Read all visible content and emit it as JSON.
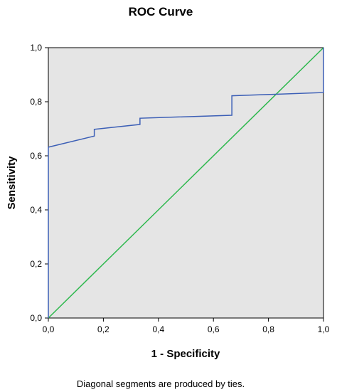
{
  "chart_data": {
    "type": "line",
    "title": "ROC Curve",
    "xlabel": "1 - Specificity",
    "ylabel": "Sensitivity",
    "xlim": [
      0,
      1
    ],
    "ylim": [
      0,
      1
    ],
    "x_ticks": [
      "0,0",
      "0,2",
      "0,4",
      "0,6",
      "0,8",
      "1,0"
    ],
    "y_ticks": [
      "0,0",
      "0,2",
      "0,4",
      "0,6",
      "0,8",
      "1,0"
    ],
    "grid": false,
    "background_color": "#e5e5e5",
    "series": [
      {
        "color": "#3c5fb6",
        "x": [
          0.0,
          0.0,
          0.167,
          0.167,
          0.333,
          0.333,
          0.667,
          0.667,
          1.0,
          1.0
        ],
        "y": [
          0.0,
          0.632,
          0.673,
          0.698,
          0.716,
          0.739,
          0.75,
          0.822,
          0.834,
          1.0
        ]
      },
      {
        "color": "#2db84d",
        "x": [
          0.0,
          1.0
        ],
        "y": [
          0.0,
          1.0
        ]
      }
    ],
    "footnote": "Diagonal segments are produced by ties."
  }
}
